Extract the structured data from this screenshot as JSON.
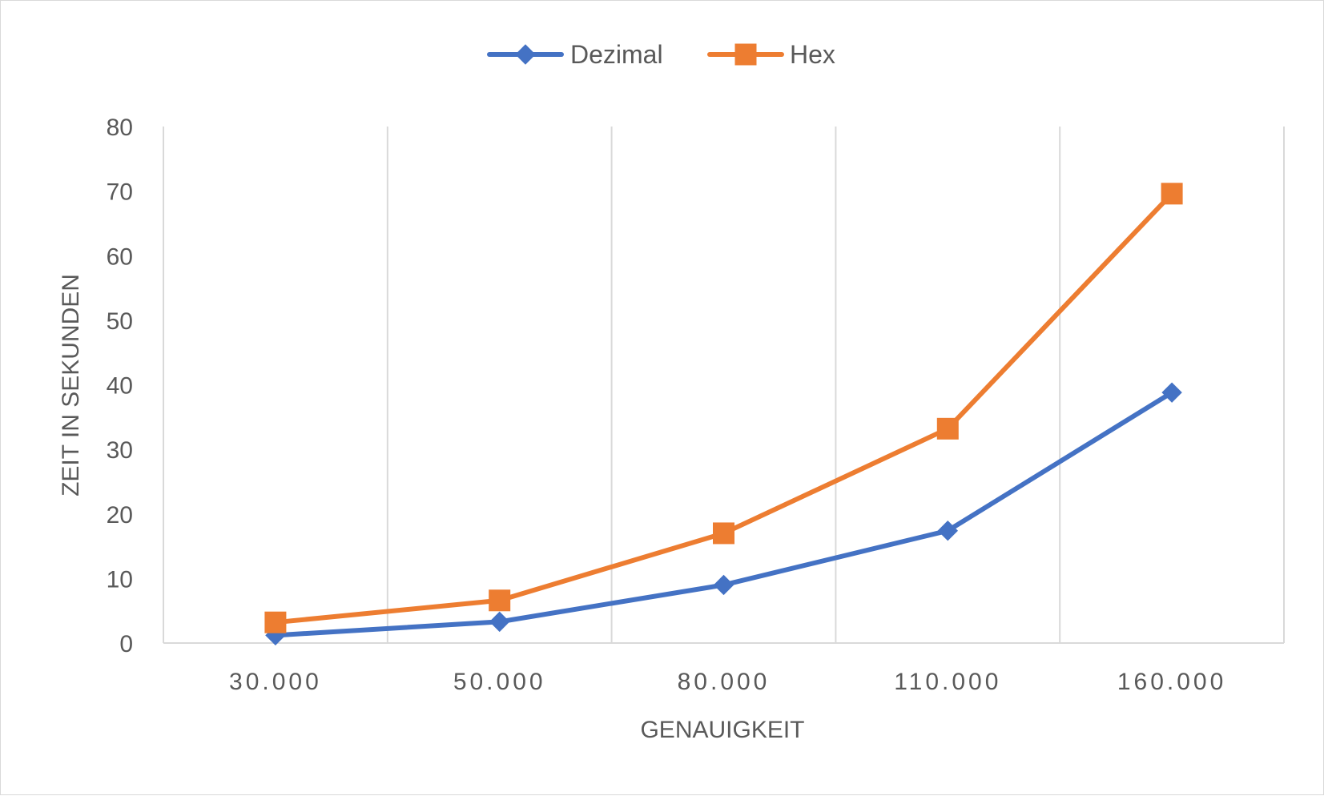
{
  "chart_data": {
    "type": "line",
    "title": "",
    "xlabel": "GENAUIGKEIT",
    "ylabel": "ZEIT IN SEKUNDEN",
    "categories": [
      "30.000",
      "50.000",
      "80.000",
      "110.000",
      "160.000"
    ],
    "ylim": [
      0,
      80
    ],
    "yticks": [
      0,
      10,
      20,
      30,
      40,
      50,
      60,
      70,
      80
    ],
    "grid": "vertical",
    "legend_position": "top-center",
    "series": [
      {
        "name": "Dezimal",
        "color": "#4472C4",
        "marker": "diamond",
        "values": [
          1.2,
          3.3,
          9,
          17.4,
          38.8
        ]
      },
      {
        "name": "Hex",
        "color": "#ED7D31",
        "marker": "square",
        "values": [
          3.2,
          6.6,
          17,
          33.2,
          69.6
        ]
      }
    ]
  }
}
